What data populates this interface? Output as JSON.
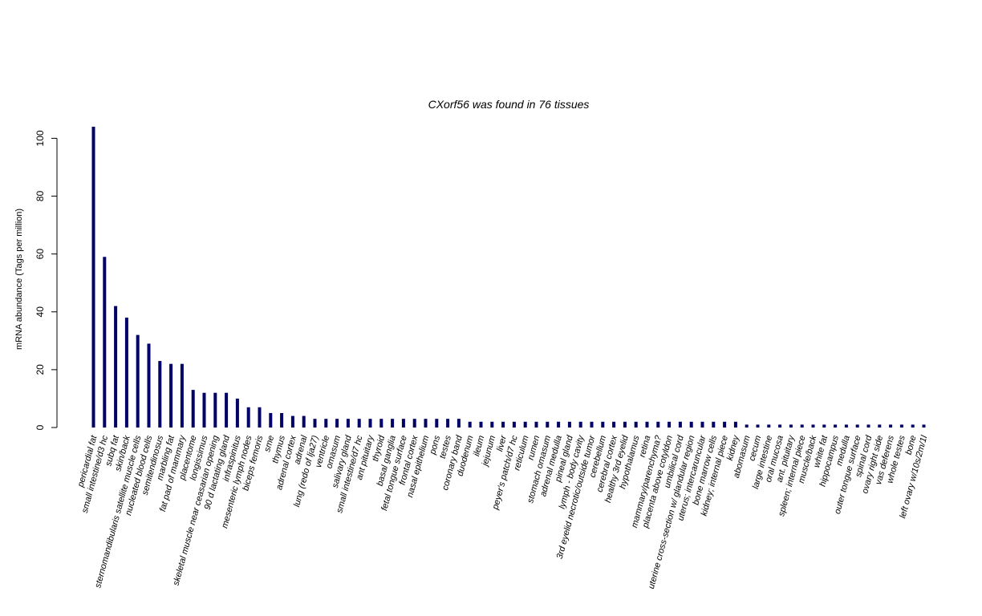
{
  "chart_data": {
    "type": "bar",
    "title": "CXorf56  was found in  76  tissues",
    "xlabel": "",
    "ylabel": "mRNA abundance (Tags per million)",
    "ylim": [
      0,
      104
    ],
    "yticks": [
      0,
      20,
      40,
      60,
      80,
      100
    ],
    "bar_color": "#000066",
    "grid": false,
    "categories": [
      "pericardial fat",
      "small intestine/d3 hc",
      "subq fat",
      "skin/back",
      "sternomandibularis satellite muscle cells",
      "nucleated blood cells",
      "semitendinosus",
      "marbling fat",
      "fat pad of mammary",
      "placentome",
      "longissimus",
      "skeletal muscle near ceasarian opening",
      "90 d lactating gland",
      "infraspinitus",
      "mesenteric lymph nodes",
      "biceps femoris",
      "sme",
      "thymus",
      "adrenal cortex",
      "adrenal",
      "lung (redo of lja27)",
      "ventricle",
      "omasum",
      "salivary gland",
      "small intestine/d7 hc",
      "ant pituitary",
      "thyroid",
      "basal ganglia",
      "fetal tongue surface",
      "frontal cortex",
      "nasal epithelium",
      "pons",
      "testes",
      "coronary band",
      "duodenum",
      "ileum",
      "jejunum",
      "liver",
      "peyer's patch/d7 hc",
      "reticulum",
      "rumen",
      "stomach omasum",
      "adrenal medulla",
      "pineal gland",
      "lymph - body cavity",
      "3rd eyelid necrotic/outside tumor",
      "cerebellum",
      "cerebral cortex",
      "healthy 3rd eyelid",
      "hypothalamus",
      "retina",
      "mammary/parenchyma?",
      "placenta above cotyldon",
      "umbilical cord",
      "uterine cross-section w/ glandular region",
      "uterus; intercaruncular",
      "bone marrow cells",
      "kidney; internal piece",
      "kidney",
      "abomasum",
      "cecum",
      "large intestine",
      "oral mucosa",
      "ant. pituitary",
      "spleen; internal piece",
      "muscle/back",
      "white fat",
      "hippocampus",
      "medulla",
      "outer tongue surface",
      "spinal cord",
      "ovary right side",
      "vas deferens",
      "whole testes",
      "bone",
      "left ovary w/10s/2m/1l"
    ],
    "values": [
      104,
      59,
      42,
      38,
      32,
      29,
      23,
      22,
      22,
      13,
      12,
      12,
      12,
      10,
      7,
      7,
      5,
      5,
      4,
      4,
      3,
      3,
      3,
      3,
      3,
      3,
      3,
      3,
      3,
      3,
      3,
      3,
      3,
      3,
      2,
      2,
      2,
      2,
      2,
      2,
      2,
      2,
      2,
      2,
      2,
      2,
      2,
      2,
      2,
      2,
      2,
      2,
      2,
      2,
      2,
      2,
      2,
      2,
      2,
      1,
      1,
      1,
      1,
      1,
      1,
      1,
      1,
      1,
      1,
      1,
      1,
      1,
      1,
      1,
      1,
      1
    ]
  }
}
